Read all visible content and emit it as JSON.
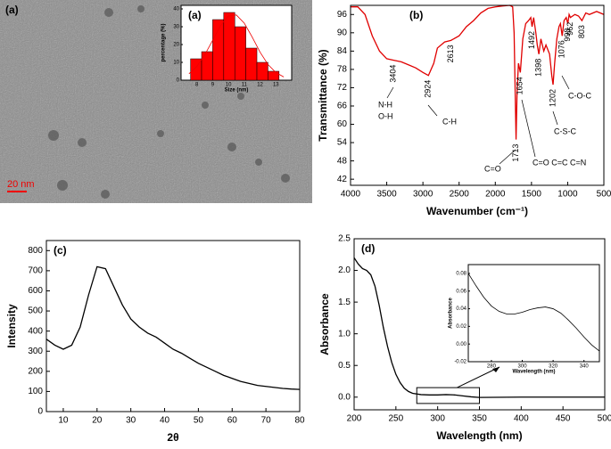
{
  "chart_data": [
    {
      "type": "histogram",
      "label": "(a)",
      "scale_bar_label": "20 nm",
      "xlabel": "Size (nm)",
      "ylabel": "percentage (%)",
      "bins": [
        7.6,
        8.3,
        9.0,
        9.7,
        10.4,
        11.1,
        11.8,
        12.5,
        13.2
      ],
      "values": [
        12,
        16,
        34,
        38,
        30,
        18,
        10,
        5
      ],
      "color": "#ff0000",
      "fit": {
        "x": [
          7.5,
          8,
          8.5,
          9,
          9.5,
          10,
          10.5,
          11,
          11.5,
          12,
          12.5,
          13,
          13.5
        ],
        "values": [
          3.6,
          7.7,
          14.2,
          22.4,
          30.6,
          36,
          36.6,
          32,
          24.2,
          15.7,
          8.8,
          4.3,
          1.8
        ]
      },
      "xlim": [
        7,
        14
      ],
      "ylim": [
        0,
        42
      ],
      "xticks": [
        8,
        9,
        10,
        11,
        12,
        13
      ],
      "yticks": [
        0,
        10,
        20,
        30,
        40
      ]
    },
    {
      "type": "line",
      "label": "(b)",
      "xlabel": "Wavenumber (cm⁻¹)",
      "ylabel": "Transmittance (%)",
      "xlim": [
        4000,
        500
      ],
      "ylim": [
        40,
        99
      ],
      "xticks": [
        4000,
        3500,
        3000,
        2500,
        2000,
        1500,
        1000,
        500
      ],
      "yticks": [
        42,
        48,
        54,
        60,
        66,
        72,
        78,
        84,
        90,
        96
      ],
      "series": [
        {
          "color": "#e00000",
          "x": [
            4000,
            3900,
            3800,
            3700,
            3600,
            3500,
            3404,
            3300,
            3200,
            3100,
            3000,
            2924,
            2850,
            2800,
            2700,
            2613,
            2500,
            2400,
            2300,
            2200,
            2100,
            2000,
            1900,
            1800,
            1760,
            1740,
            1725,
            1713,
            1700,
            1680,
            1654,
            1620,
            1580,
            1540,
            1510,
            1492,
            1470,
            1440,
            1420,
            1398,
            1370,
            1330,
            1300,
            1250,
            1220,
            1202,
            1180,
            1150,
            1120,
            1100,
            1076,
            1050,
            1020,
            998,
            980,
            962,
            900,
            850,
            803,
            750,
            700,
            600,
            500
          ],
          "values": [
            98.5,
            98.5,
            96,
            89,
            84,
            81.5,
            81,
            80.5,
            79.5,
            78.5,
            77,
            76,
            80,
            85,
            87,
            87.5,
            89,
            92,
            94,
            96.5,
            98,
            98.5,
            98.8,
            99,
            98.5,
            90,
            70,
            55,
            70,
            80,
            77,
            88,
            93,
            94,
            95,
            92,
            95,
            90,
            86,
            83,
            88,
            84,
            86,
            83,
            76,
            73,
            80,
            88,
            92,
            93,
            89,
            94,
            95,
            93,
            96,
            95,
            96,
            95.5,
            94,
            96.5,
            96,
            97,
            96
          ]
        }
      ],
      "peaks": [
        3404,
        2924,
        2613,
        1713,
        1654,
        1492,
        1398,
        1202,
        1076,
        998,
        962,
        803
      ],
      "groups": [
        "N-H",
        "O-H",
        "C-H",
        "C=O",
        "C=O C=C C=N",
        "C-S-C",
        "C-O-C"
      ]
    },
    {
      "type": "line",
      "label": "(c)",
      "xlabel": "2θ",
      "ylabel": "Intensity",
      "xlim": [
        5,
        80
      ],
      "ylim": [
        0,
        850
      ],
      "xticks": [
        10,
        20,
        30,
        40,
        50,
        60,
        70,
        80
      ],
      "yticks": [
        0,
        100,
        200,
        300,
        400,
        500,
        600,
        700,
        800
      ],
      "series": [
        {
          "color": "#000000",
          "x": [
            5,
            7.5,
            10,
            12.5,
            15,
            17.5,
            20,
            22.5,
            25,
            27.5,
            30,
            32.5,
            35,
            37.5,
            40,
            42.5,
            45,
            47.5,
            50,
            52.5,
            55,
            57.5,
            60,
            62.5,
            65,
            67.5,
            70,
            72.5,
            75,
            77.5,
            80
          ],
          "values": [
            360,
            330,
            310,
            330,
            420,
            580,
            720,
            710,
            620,
            530,
            460,
            420,
            390,
            370,
            340,
            310,
            290,
            265,
            240,
            220,
            200,
            180,
            165,
            150,
            140,
            130,
            125,
            120,
            115,
            112,
            110
          ]
        }
      ]
    },
    {
      "type": "line",
      "label": "(d)",
      "xlabel": "Wavelength (nm)",
      "ylabel": "Absorbance",
      "xlim": [
        200,
        500
      ],
      "ylim": [
        -0.2,
        2.5
      ],
      "xticks": [
        200,
        250,
        300,
        350,
        400,
        450,
        500
      ],
      "yticks": [
        {
          "value": 0,
          "label": "0.0"
        },
        0.5,
        {
          "value": 1,
          "label": "1.0"
        },
        1.5,
        {
          "value": 2,
          "label": "2.0"
        },
        2.5
      ],
      "zoom_box": {
        "xlim": [
          275,
          350
        ],
        "ylim": [
          -0.1,
          0.15
        ]
      },
      "series": [
        {
          "color": "#000000",
          "x": [
            200,
            205,
            210,
            215,
            220,
            225,
            230,
            235,
            240,
            245,
            250,
            255,
            260,
            265,
            270,
            280,
            290,
            300,
            310,
            320,
            330,
            340,
            350,
            400,
            450,
            500
          ],
          "values": [
            2.2,
            2.1,
            2.03,
            2.0,
            1.93,
            1.75,
            1.45,
            1.1,
            0.8,
            0.55,
            0.36,
            0.23,
            0.14,
            0.09,
            0.06,
            0.04,
            0.035,
            0.035,
            0.04,
            0.035,
            0.02,
            0.005,
            -0.005,
            0.0,
            0.0,
            0.0
          ]
        }
      ]
    },
    {
      "type": "line",
      "xlabel": "Wavelength (nm)",
      "ylabel": "Absorbance",
      "xlim": [
        265,
        350
      ],
      "ylim": [
        -0.02,
        0.09
      ],
      "xticks": [
        280,
        300,
        320,
        340
      ],
      "yticks": [
        -0.02,
        {
          "value": 0,
          "label": "0.00"
        },
        0.02,
        0.04,
        0.06,
        0.08
      ],
      "series": [
        {
          "color": "#000000",
          "x": [
            265,
            270,
            275,
            280,
            285,
            290,
            295,
            300,
            305,
            310,
            315,
            320,
            325,
            330,
            335,
            340,
            345,
            350
          ],
          "values": [
            0.08,
            0.066,
            0.053,
            0.043,
            0.037,
            0.034,
            0.034,
            0.036,
            0.039,
            0.041,
            0.042,
            0.04,
            0.035,
            0.027,
            0.018,
            0.008,
            -0.001,
            -0.008
          ]
        }
      ]
    }
  ]
}
